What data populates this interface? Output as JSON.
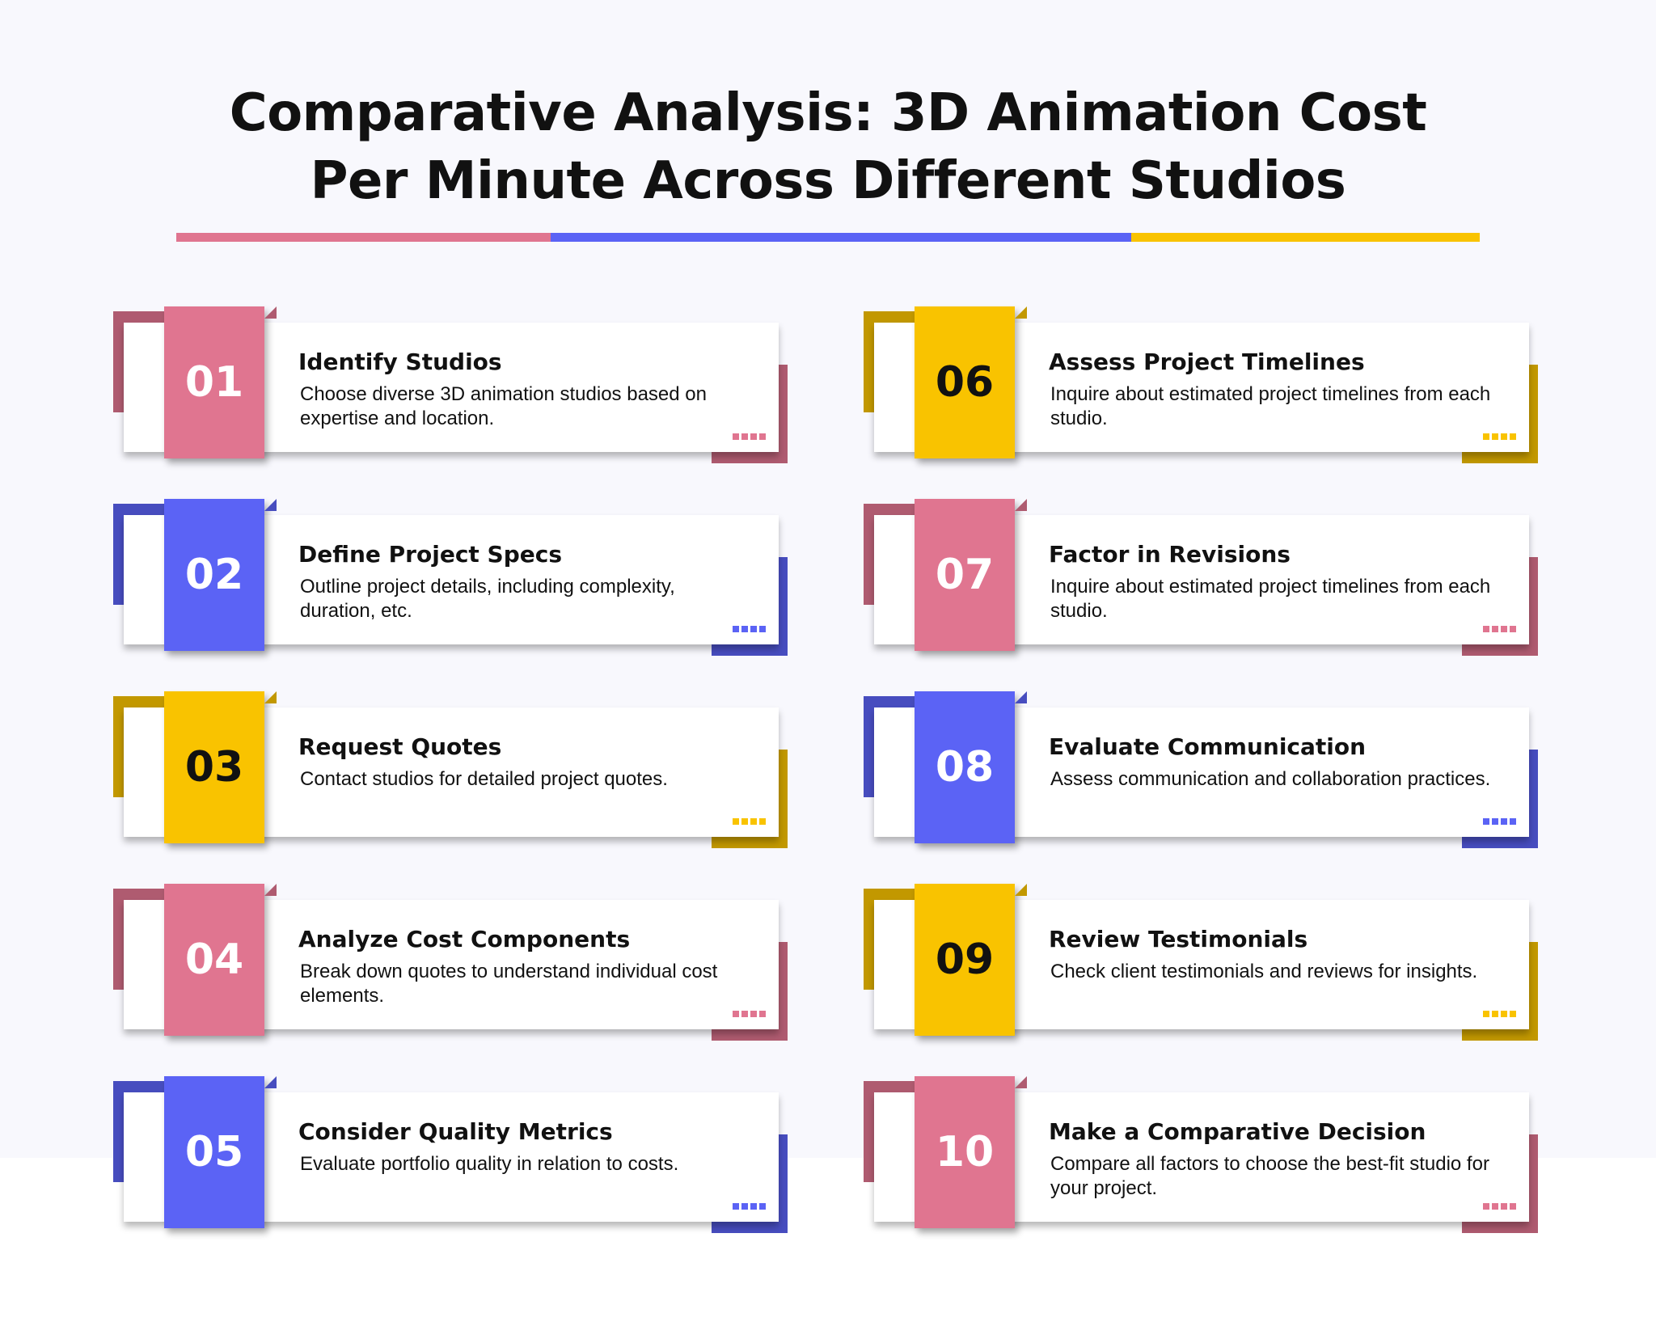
{
  "header": {
    "title": "Comparative Analysis: 3D Animation Cost Per Minute Across Different Studios",
    "bar_colors": [
      "#e07590",
      "#5b63f5",
      "#f9c300"
    ]
  },
  "steps": [
    {
      "number": "01",
      "title": "Identify Studios",
      "description": "Choose diverse 3D animation studios based on expertise and location.",
      "color": "#e07590"
    },
    {
      "number": "02",
      "title": "Define Project Specs",
      "description": "Outline project details, including complexity, duration, etc.",
      "color": "#5b63f5"
    },
    {
      "number": "03",
      "title": "Request Quotes",
      "description": "Contact studios for detailed project quotes.",
      "color": "#f9c300"
    },
    {
      "number": "04",
      "title": "Analyze Cost Components",
      "description": "Break down quotes to understand individual cost elements.",
      "color": "#e07590"
    },
    {
      "number": "05",
      "title": "Consider Quality Metrics",
      "description": "Evaluate portfolio quality in relation to costs.",
      "color": "#5b63f5"
    },
    {
      "number": "06",
      "title": "Assess Project Timelines",
      "description": "Inquire about estimated project timelines from each studio.",
      "color": "#f9c300"
    },
    {
      "number": "07",
      "title": "Factor in Revisions",
      "description": "Inquire about estimated project timelines from each studio.",
      "color": "#e07590"
    },
    {
      "number": "08",
      "title": "Evaluate Communication",
      "description": "Assess communication and collaboration practices.",
      "color": "#5b63f5"
    },
    {
      "number": "09",
      "title": "Review Testimonials",
      "description": "Check client testimonials and reviews for insights.",
      "color": "#f9c300"
    },
    {
      "number": "10",
      "title": "Make a Comparative Decision",
      "description": "Compare all factors to choose the best-fit studio for your project.",
      "color": "#e07590"
    }
  ]
}
